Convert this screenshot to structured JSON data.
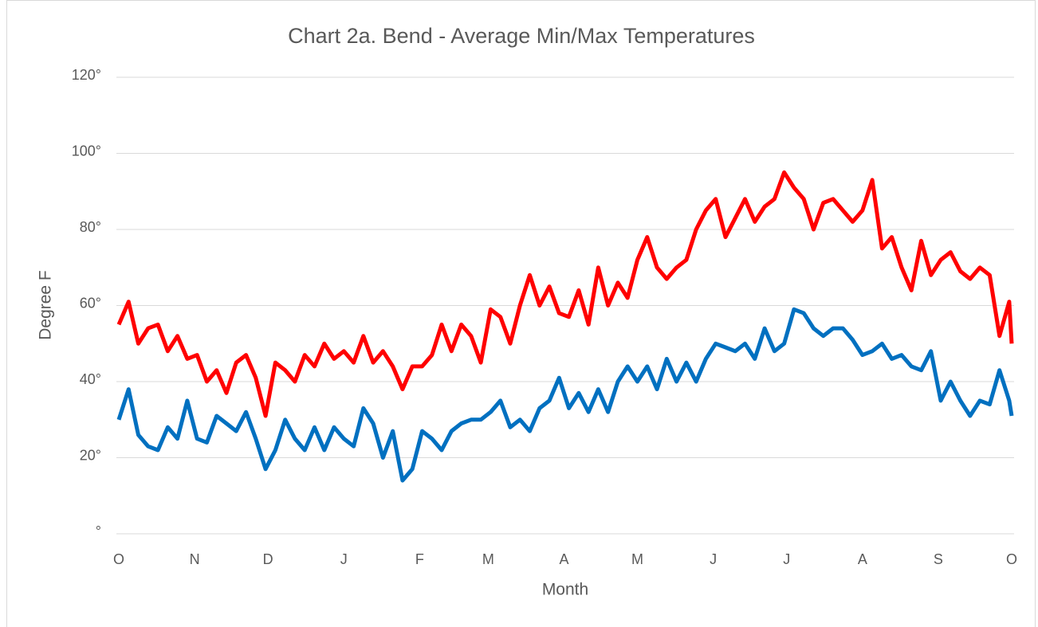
{
  "chart_data": {
    "type": "line",
    "title": "Chart 2a. Bend - Average Min/Max Temperatures",
    "x_label": "Month",
    "y_label": "Degree F",
    "x": [
      0,
      4,
      8,
      12,
      16,
      20,
      24,
      28,
      32,
      36,
      40,
      44,
      48,
      52,
      56,
      60,
      64,
      68,
      72,
      76,
      80,
      84,
      88,
      92,
      96,
      100,
      104,
      108,
      112,
      116,
      120,
      124,
      128,
      132,
      136,
      140,
      144,
      148,
      152,
      156,
      160,
      164,
      168,
      172,
      176,
      180,
      184,
      188,
      192,
      196,
      200,
      204,
      208,
      212,
      216,
      220,
      224,
      228,
      232,
      236,
      240,
      244,
      248,
      252,
      256,
      260,
      264,
      268,
      272,
      276,
      280,
      284,
      288,
      292,
      296,
      300,
      304,
      308,
      312,
      316,
      320,
      324,
      328,
      332,
      336,
      340,
      344,
      348,
      352,
      356,
      360,
      364,
      365
    ],
    "series": [
      {
        "color": "#ff0000",
        "values": [
          55,
          61,
          50,
          54,
          55,
          48,
          52,
          46,
          47,
          40,
          43,
          37,
          45,
          47,
          41,
          31,
          45,
          43,
          40,
          47,
          44,
          50,
          46,
          48,
          45,
          52,
          45,
          48,
          44,
          38,
          44,
          44,
          47,
          55,
          48,
          55,
          52,
          45,
          59,
          57,
          50,
          60,
          68,
          60,
          65,
          58,
          57,
          64,
          55,
          70,
          60,
          66,
          62,
          72,
          78,
          70,
          67,
          70,
          72,
          80,
          85,
          88,
          78,
          83,
          88,
          82,
          86,
          88,
          95,
          91,
          88,
          80,
          87,
          88,
          85,
          82,
          85,
          93,
          75,
          78,
          70,
          64,
          77,
          68,
          72,
          74,
          69,
          67,
          70,
          68,
          52,
          61,
          50
        ]
      },
      {
        "color": "#0070c0",
        "values": [
          30,
          38,
          26,
          23,
          22,
          28,
          25,
          35,
          25,
          24,
          31,
          29,
          27,
          32,
          25,
          17,
          22,
          30,
          25,
          22,
          28,
          22,
          28,
          25,
          23,
          33,
          29,
          20,
          27,
          14,
          17,
          27,
          25,
          22,
          27,
          29,
          30,
          30,
          32,
          35,
          28,
          30,
          27,
          33,
          35,
          41,
          33,
          37,
          32,
          38,
          32,
          40,
          44,
          40,
          44,
          38,
          46,
          40,
          45,
          40,
          46,
          50,
          49,
          48,
          50,
          46,
          54,
          48,
          50,
          59,
          58,
          54,
          52,
          54,
          54,
          51,
          47,
          48,
          50,
          46,
          47,
          44,
          43,
          48,
          35,
          40,
          35,
          31,
          35,
          34,
          43,
          35,
          31
        ]
      }
    ],
    "xlim": [
      0,
      365
    ],
    "xticks": [
      {
        "value": 0,
        "label": "O"
      },
      {
        "value": 31,
        "label": "N"
      },
      {
        "value": 61,
        "label": "D"
      },
      {
        "value": 92,
        "label": "J"
      },
      {
        "value": 123,
        "label": "F"
      },
      {
        "value": 151,
        "label": "M"
      },
      {
        "value": 182,
        "label": "A"
      },
      {
        "value": 212,
        "label": "M"
      },
      {
        "value": 243,
        "label": "J"
      },
      {
        "value": 273,
        "label": "J"
      },
      {
        "value": 304,
        "label": "A"
      },
      {
        "value": 335,
        "label": "S"
      },
      {
        "value": 365,
        "label": "O"
      }
    ],
    "ylim": [
      0,
      120
    ],
    "yticks": [
      {
        "value": 0,
        "label": "°"
      },
      {
        "value": 20,
        "label": "20°"
      },
      {
        "value": 40,
        "label": "40°"
      },
      {
        "value": 60,
        "label": "60°"
      },
      {
        "value": 80,
        "label": "80°"
      },
      {
        "value": 100,
        "label": "100°"
      },
      {
        "value": 120,
        "label": "120°"
      }
    ],
    "grid": true
  }
}
